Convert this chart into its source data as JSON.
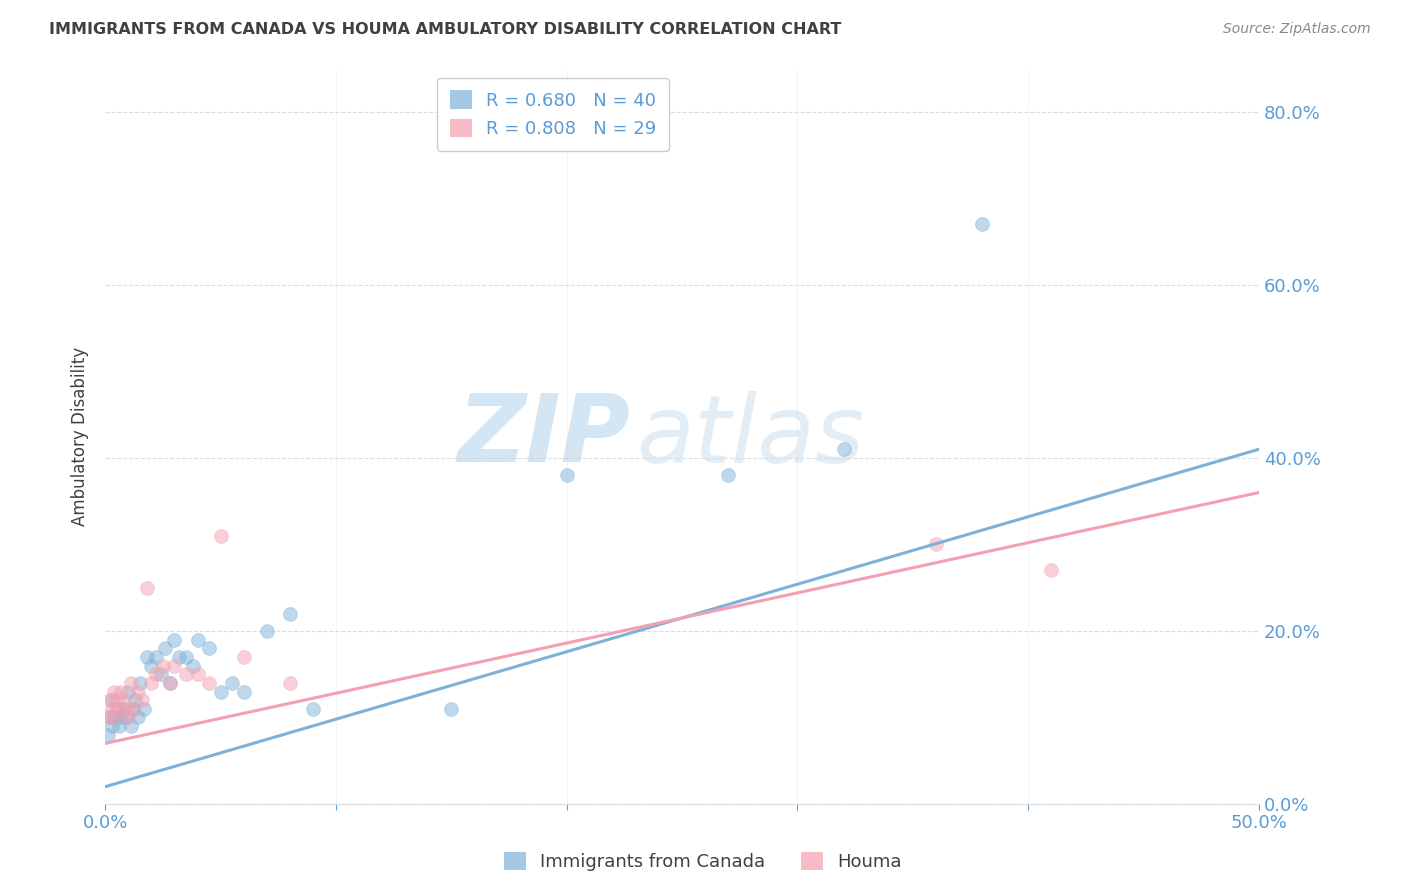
{
  "title": "IMMIGRANTS FROM CANADA VS HOUMA AMBULATORY DISABILITY CORRELATION CHART",
  "source": "Source: ZipAtlas.com",
  "ylabel": "Ambulatory Disability",
  "xlim": [
    0.0,
    0.5
  ],
  "ylim": [
    0.0,
    0.85
  ],
  "yticks": [
    0.0,
    0.2,
    0.4,
    0.6,
    0.8
  ],
  "xticks": [
    0.0,
    0.1,
    0.2,
    0.3,
    0.4,
    0.5
  ],
  "blue_R": 0.68,
  "blue_N": 40,
  "pink_R": 0.808,
  "pink_N": 29,
  "blue_color": "#7EB1D8",
  "pink_color": "#F4A0B0",
  "legend_blue_label": "Immigrants from Canada",
  "legend_pink_label": "Houma",
  "blue_scatter_x": [
    0.001,
    0.002,
    0.003,
    0.003,
    0.004,
    0.005,
    0.006,
    0.007,
    0.008,
    0.009,
    0.01,
    0.011,
    0.012,
    0.013,
    0.014,
    0.015,
    0.017,
    0.018,
    0.02,
    0.022,
    0.024,
    0.026,
    0.028,
    0.03,
    0.032,
    0.035,
    0.038,
    0.04,
    0.045,
    0.05,
    0.055,
    0.06,
    0.07,
    0.08,
    0.09,
    0.15,
    0.2,
    0.27,
    0.32,
    0.38
  ],
  "blue_scatter_y": [
    0.08,
    0.1,
    0.09,
    0.12,
    0.1,
    0.11,
    0.09,
    0.1,
    0.11,
    0.1,
    0.13,
    0.09,
    0.11,
    0.12,
    0.1,
    0.14,
    0.11,
    0.17,
    0.16,
    0.17,
    0.15,
    0.18,
    0.14,
    0.19,
    0.17,
    0.17,
    0.16,
    0.19,
    0.18,
    0.13,
    0.14,
    0.13,
    0.2,
    0.22,
    0.11,
    0.11,
    0.38,
    0.38,
    0.41,
    0.67
  ],
  "pink_scatter_x": [
    0.001,
    0.002,
    0.003,
    0.004,
    0.004,
    0.005,
    0.006,
    0.007,
    0.008,
    0.009,
    0.01,
    0.011,
    0.012,
    0.014,
    0.016,
    0.018,
    0.02,
    0.022,
    0.025,
    0.028,
    0.03,
    0.035,
    0.04,
    0.045,
    0.05,
    0.06,
    0.08,
    0.36,
    0.41
  ],
  "pink_scatter_y": [
    0.1,
    0.12,
    0.11,
    0.13,
    0.1,
    0.12,
    0.11,
    0.13,
    0.12,
    0.11,
    0.1,
    0.14,
    0.11,
    0.13,
    0.12,
    0.25,
    0.14,
    0.15,
    0.16,
    0.14,
    0.16,
    0.15,
    0.15,
    0.14,
    0.31,
    0.17,
    0.14,
    0.3,
    0.27
  ],
  "blue_line_x": [
    0.0,
    0.5
  ],
  "blue_line_y": [
    0.02,
    0.41
  ],
  "pink_line_x": [
    0.0,
    0.5
  ],
  "pink_line_y": [
    0.07,
    0.36
  ],
  "watermark_ZIP": "ZIP",
  "watermark_atlas": "atlas",
  "watermark_dot": "●",
  "background_color": "#FFFFFF",
  "grid_color": "#DDDDDD",
  "axis_label_color": "#5B9BD5",
  "title_color": "#404040",
  "source_color": "#888888"
}
